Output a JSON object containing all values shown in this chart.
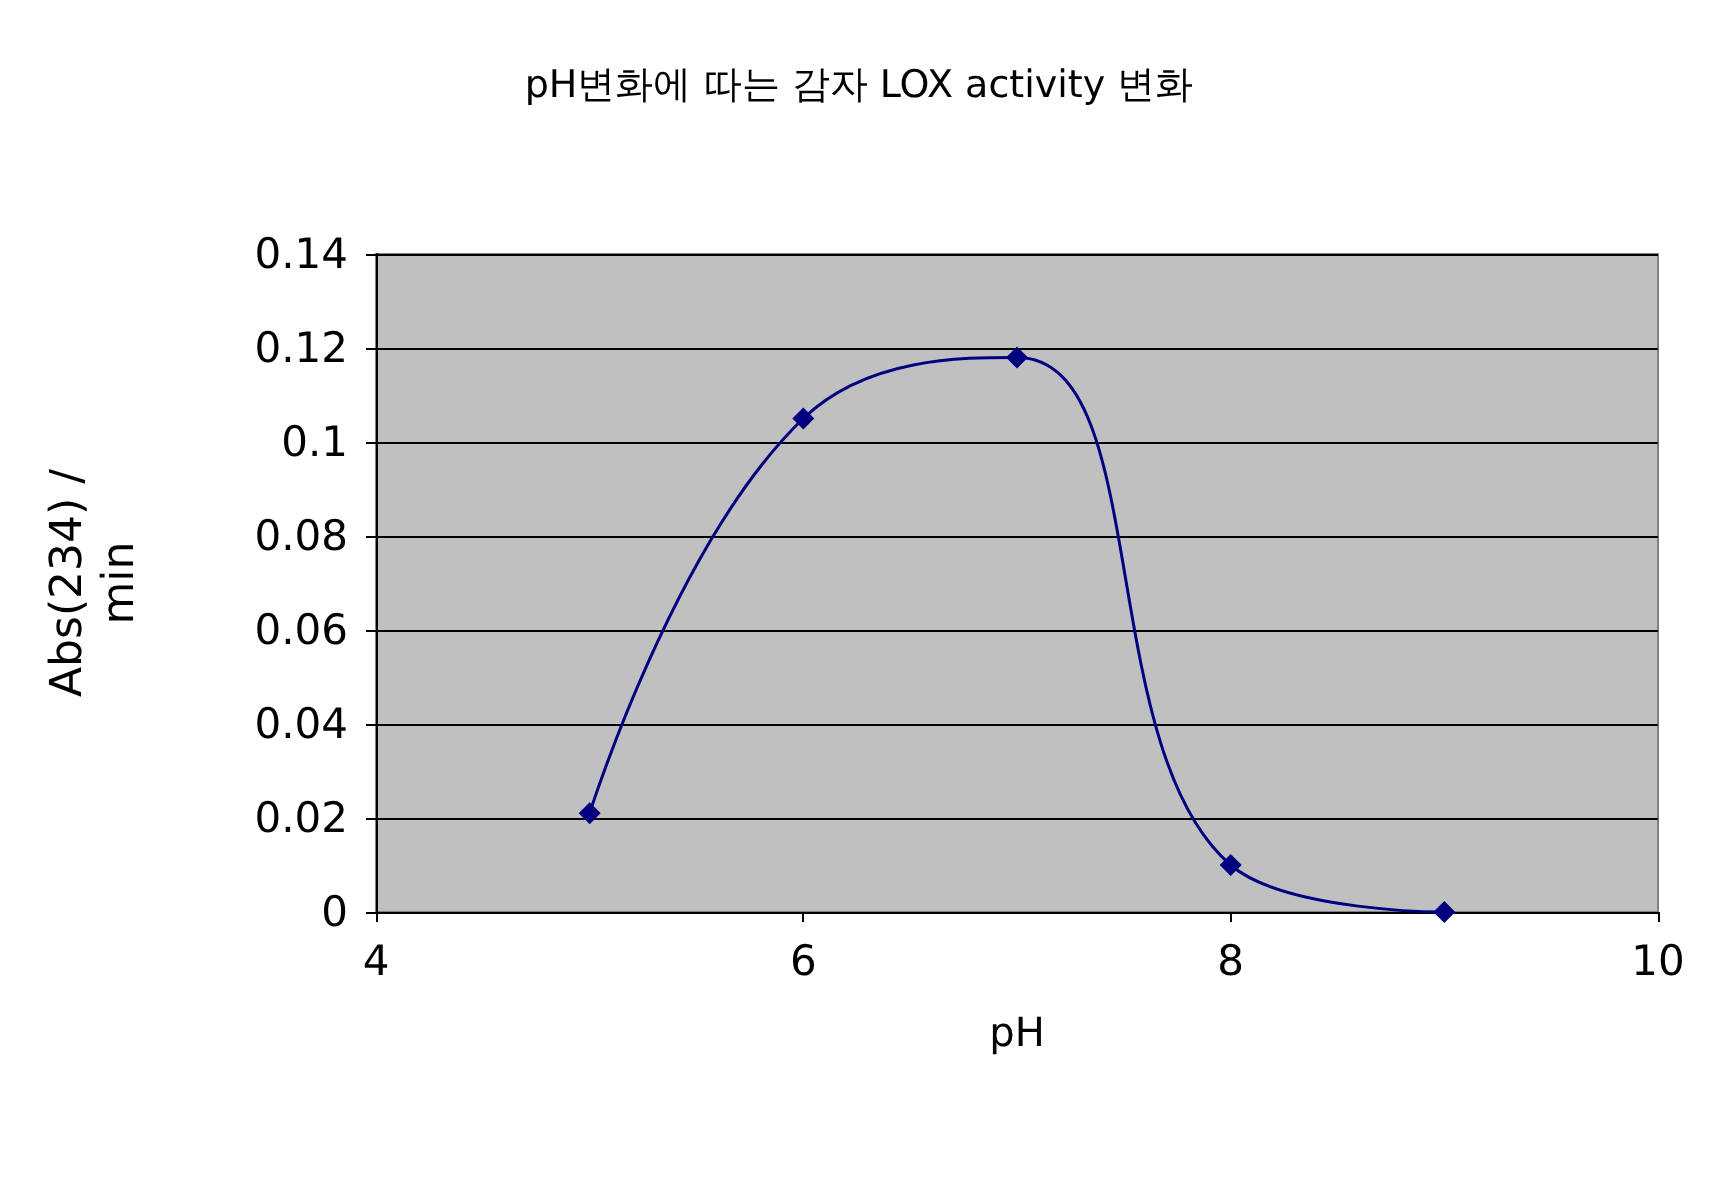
{
  "chart_data": {
    "type": "line",
    "title": "pH변화에 따는 감자 LOX activity 변화",
    "xlabel": "pH",
    "ylabel": "Abs(234) / min",
    "x": [
      5,
      6,
      7,
      8,
      9
    ],
    "series": [
      {
        "color": "#000080",
        "values": [
          0.021,
          0.105,
          0.118,
          0.01,
          0
        ]
      }
    ],
    "xlim": [
      4,
      10
    ],
    "xticks": [
      4,
      6,
      8,
      10
    ],
    "ylim": [
      0,
      0.14
    ],
    "yticks": [
      0,
      0.02,
      0.04,
      0.06,
      0.08,
      0.1,
      0.12,
      0.14
    ],
    "grid": "y",
    "marker": "diamond",
    "line_style": "solid"
  }
}
